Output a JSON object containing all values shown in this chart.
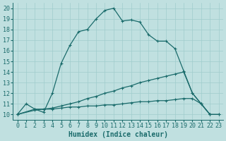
{
  "xlabel": "Humidex (Indice chaleur)",
  "bg_color": "#c0e0e0",
  "grid_color": "#a0cccc",
  "line_color": "#1a6b6b",
  "line1_x": [
    0,
    1,
    2,
    3,
    4,
    5,
    6,
    7,
    8,
    9,
    10,
    11,
    12,
    13,
    14,
    15,
    16,
    17,
    18,
    19,
    20,
    21,
    22
  ],
  "line1_y": [
    10,
    11,
    10.5,
    10.2,
    12,
    14.8,
    16.5,
    17.8,
    18.0,
    19.0,
    19.8,
    20.0,
    18.8,
    18.9,
    18.7,
    17.5,
    16.9,
    16.9,
    16.2,
    14.1,
    12.0,
    11.0,
    10.0
  ],
  "line2_x": [
    0,
    2,
    3,
    4,
    5,
    6,
    7,
    8,
    9,
    10,
    11,
    12,
    13,
    14,
    15,
    16,
    17,
    18,
    19,
    20,
    21,
    22,
    23
  ],
  "line2_y": [
    10,
    10.5,
    10.5,
    10.6,
    10.8,
    11.0,
    11.2,
    11.5,
    11.7,
    12.0,
    12.2,
    12.5,
    12.7,
    13.0,
    13.2,
    13.4,
    13.6,
    13.8,
    14.0,
    12.0,
    11.0,
    10.0,
    10.0
  ],
  "line3_x": [
    0,
    2,
    3,
    4,
    5,
    6,
    7,
    8,
    9,
    10,
    11,
    12,
    13,
    14,
    15,
    16,
    17,
    18,
    19,
    20,
    21,
    22,
    23
  ],
  "line3_y": [
    10,
    10.4,
    10.5,
    10.5,
    10.6,
    10.7,
    10.7,
    10.8,
    10.8,
    10.9,
    10.9,
    11.0,
    11.1,
    11.2,
    11.2,
    11.3,
    11.3,
    11.4,
    11.5,
    11.5,
    11.0,
    10.0,
    10.0
  ],
  "xlim": [
    -0.5,
    23.5
  ],
  "ylim": [
    9.5,
    20.5
  ],
  "xticks": [
    0,
    1,
    2,
    3,
    4,
    5,
    6,
    7,
    8,
    9,
    10,
    11,
    12,
    13,
    14,
    15,
    16,
    17,
    18,
    19,
    20,
    21,
    22,
    23
  ],
  "yticks": [
    10,
    11,
    12,
    13,
    14,
    15,
    16,
    17,
    18,
    19,
    20
  ],
  "tick_fontsize": 6.0,
  "xlabel_fontsize": 7.0
}
